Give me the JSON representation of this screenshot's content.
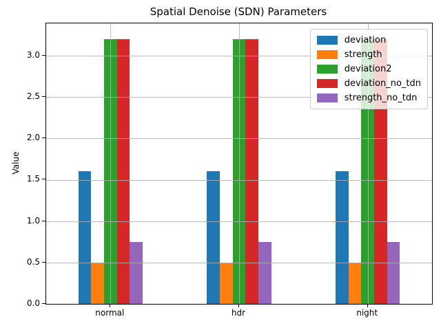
{
  "chart_data": {
    "type": "bar",
    "title": "Spatial Denoise (SDN) Parameters",
    "xlabel": "",
    "ylabel": "Value",
    "categories": [
      "normal",
      "hdr",
      "night"
    ],
    "series": [
      {
        "name": "deviation",
        "color": "#1f77b4",
        "values": [
          1.6,
          1.6,
          1.6
        ]
      },
      {
        "name": "strength",
        "color": "#ff7f0e",
        "values": [
          0.5,
          0.5,
          0.5
        ]
      },
      {
        "name": "deviation2",
        "color": "#2ca02c",
        "values": [
          3.2,
          3.2,
          3.2
        ]
      },
      {
        "name": "deviation_no_tdn",
        "color": "#d62728",
        "values": [
          3.2,
          3.2,
          3.2
        ]
      },
      {
        "name": "strength_no_tdn",
        "color": "#9467bd",
        "values": [
          0.75,
          0.75,
          0.75
        ]
      }
    ],
    "ylim": [
      0,
      3.39
    ],
    "yticks": [
      0.0,
      0.5,
      1.0,
      1.5,
      2.0,
      2.5,
      3.0
    ],
    "bar_width": 0.1,
    "grid": true,
    "legend_position": "upper right",
    "axis_color": "#000000",
    "grid_color": "#b0b0b0"
  }
}
